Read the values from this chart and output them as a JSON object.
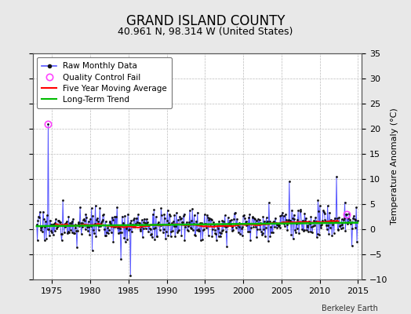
{
  "title": "GRAND ISLAND COUNTY",
  "subtitle": "40.961 N, 98.314 W (United States)",
  "ylabel_right": "Temperature Anomaly (°C)",
  "attribution": "Berkeley Earth",
  "xlim": [
    1972.5,
    2015.5
  ],
  "ylim": [
    -10,
    35
  ],
  "yticks": [
    -10,
    -5,
    0,
    5,
    10,
    15,
    20,
    25,
    30,
    35
  ],
  "xticks": [
    1975,
    1980,
    1985,
    1990,
    1995,
    2000,
    2005,
    2010,
    2015
  ],
  "background_color": "#e8e8e8",
  "plot_bg_color": "#ffffff",
  "raw_line_color": "#5555ff",
  "raw_marker_color": "#111111",
  "qc_fail_color": "#ff44ff",
  "moving_avg_color": "#ff0000",
  "trend_color": "#00bb00",
  "grid_color": "#bbbbbb",
  "seed": 17
}
